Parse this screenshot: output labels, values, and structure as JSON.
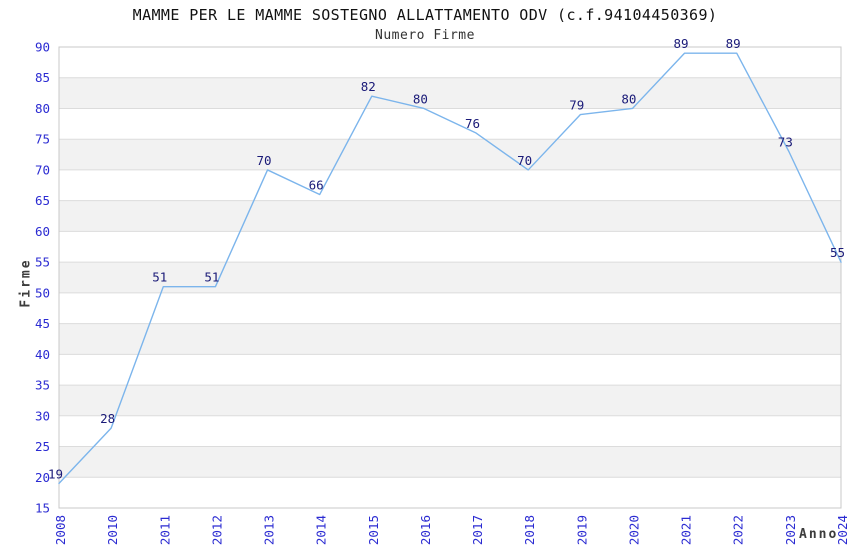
{
  "chart_data": {
    "type": "line",
    "title": "MAMME PER LE MAMME SOSTEGNO ALLATTAMENTO ODV (c.f.94104450369)",
    "subtitle": "Numero Firme",
    "xlabel": "Anno",
    "ylabel": "Firme",
    "categories": [
      "2008",
      "2010",
      "2011",
      "2012",
      "2013",
      "2014",
      "2015",
      "2016",
      "2017",
      "2018",
      "2019",
      "2020",
      "2021",
      "2022",
      "2023",
      "2024"
    ],
    "values": [
      19,
      28,
      51,
      51,
      70,
      66,
      82,
      80,
      76,
      70,
      79,
      80,
      89,
      89,
      73,
      55
    ],
    "ylim": [
      15,
      90
    ],
    "ytick_step": 5,
    "grid": "horizontal-bands-alternating",
    "legend": "none",
    "markers": "none",
    "data_labels": "shown",
    "colors": {
      "line": "#7cb5ec",
      "tick_label": "#2b2bd2",
      "data_label": "#1a1a78",
      "band": "#f2f2f2",
      "gridline": "#dcdcdc",
      "border": "#c8c8c8",
      "title": "#111111",
      "subtitle": "#333333",
      "axis_label": "#3c3c3c",
      "background": "#ffffff"
    }
  }
}
